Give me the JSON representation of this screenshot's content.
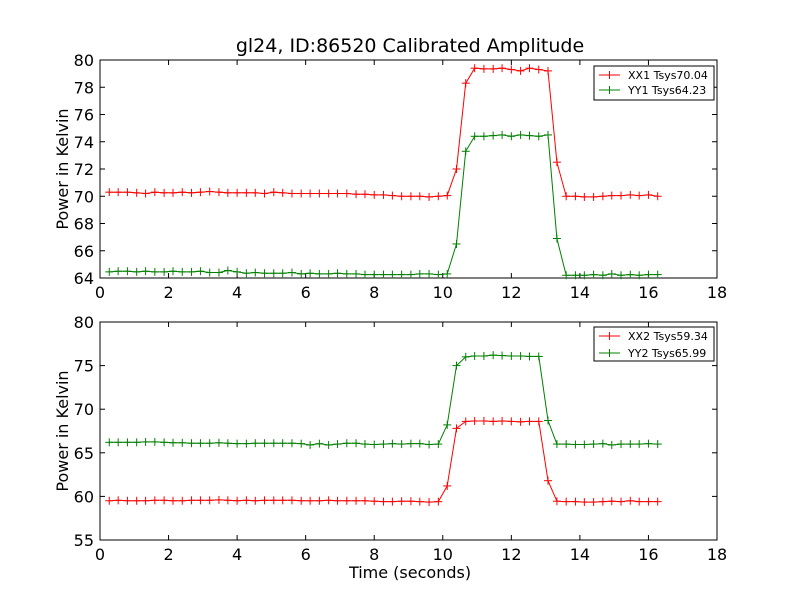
{
  "chart_data": [
    {
      "type": "line",
      "title": "gl24, ID:86520 Calibrated Amplitude",
      "xlabel": "",
      "ylabel": "Power in Kelvin",
      "xlim": [
        0,
        18
      ],
      "ylim": [
        64,
        80
      ],
      "xticks": [
        "0",
        "2",
        "4",
        "6",
        "8",
        "10",
        "12",
        "14",
        "16",
        "18"
      ],
      "yticks": [
        "64",
        "66",
        "68",
        "70",
        "72",
        "74",
        "76",
        "78",
        "80"
      ],
      "legend_position": "top-right",
      "grid": false,
      "x": [
        0.27,
        0.53,
        0.8,
        1.07,
        1.33,
        1.6,
        1.87,
        2.13,
        2.4,
        2.67,
        2.93,
        3.2,
        3.47,
        3.73,
        4.0,
        4.27,
        4.53,
        4.8,
        5.07,
        5.33,
        5.6,
        5.87,
        6.13,
        6.4,
        6.67,
        6.93,
        7.2,
        7.47,
        7.73,
        8.0,
        8.27,
        8.53,
        8.8,
        9.07,
        9.33,
        9.6,
        9.87,
        10.13,
        10.4,
        10.67,
        10.93,
        11.2,
        11.47,
        11.73,
        12.0,
        12.27,
        12.53,
        12.8,
        13.07,
        13.33,
        13.6,
        13.87,
        14.13,
        14.4,
        14.67,
        14.93,
        15.2,
        15.47,
        15.73,
        16.0,
        16.27
      ],
      "series": [
        {
          "name": "XX1 Tsys70.04",
          "color": "#ff0000",
          "values": [
            70.3,
            70.3,
            70.3,
            70.25,
            70.2,
            70.3,
            70.25,
            70.25,
            70.3,
            70.25,
            70.3,
            70.35,
            70.3,
            70.25,
            70.25,
            70.25,
            70.25,
            70.2,
            70.3,
            70.25,
            70.2,
            70.2,
            70.2,
            70.2,
            70.2,
            70.2,
            70.2,
            70.15,
            70.15,
            70.1,
            70.1,
            70.05,
            70.0,
            70.0,
            70.0,
            69.95,
            70.0,
            70.05,
            72.0,
            78.3,
            79.4,
            79.35,
            79.35,
            79.4,
            79.3,
            79.2,
            79.4,
            79.3,
            79.2,
            72.5,
            70.0,
            70.0,
            69.95,
            69.95,
            70.0,
            70.05,
            70.05,
            70.1,
            70.05,
            70.1,
            70.0
          ]
        },
        {
          "name": "YY1 Tsys64.23",
          "color": "#008000",
          "values": [
            64.45,
            64.5,
            64.5,
            64.45,
            64.5,
            64.45,
            64.45,
            64.5,
            64.45,
            64.45,
            64.5,
            64.4,
            64.4,
            64.55,
            64.45,
            64.35,
            64.4,
            64.35,
            64.35,
            64.35,
            64.4,
            64.3,
            64.35,
            64.3,
            64.3,
            64.35,
            64.3,
            64.3,
            64.25,
            64.25,
            64.25,
            64.25,
            64.25,
            64.25,
            64.3,
            64.3,
            64.25,
            64.3,
            66.5,
            73.3,
            74.4,
            74.4,
            74.45,
            74.5,
            74.4,
            74.5,
            74.45,
            74.4,
            74.5,
            66.9,
            64.2,
            64.2,
            64.2,
            64.25,
            64.2,
            64.3,
            64.2,
            64.25,
            64.2,
            64.25,
            64.25
          ]
        }
      ]
    },
    {
      "type": "line",
      "title": "",
      "xlabel": "Time (seconds)",
      "ylabel": "Power in Kelvin",
      "xlim": [
        0,
        18
      ],
      "ylim": [
        55,
        80
      ],
      "xticks": [
        "0",
        "2",
        "4",
        "6",
        "8",
        "10",
        "12",
        "14",
        "16",
        "18"
      ],
      "yticks": [
        "55",
        "60",
        "65",
        "70",
        "75",
        "80"
      ],
      "legend_position": "top-right",
      "grid": false,
      "x": [
        0.27,
        0.53,
        0.8,
        1.07,
        1.33,
        1.6,
        1.87,
        2.13,
        2.4,
        2.67,
        2.93,
        3.2,
        3.47,
        3.73,
        4.0,
        4.27,
        4.53,
        4.8,
        5.07,
        5.33,
        5.6,
        5.87,
        6.13,
        6.4,
        6.67,
        6.93,
        7.2,
        7.47,
        7.73,
        8.0,
        8.27,
        8.53,
        8.8,
        9.07,
        9.33,
        9.6,
        9.87,
        10.13,
        10.4,
        10.67,
        10.93,
        11.2,
        11.47,
        11.73,
        12.0,
        12.27,
        12.53,
        12.8,
        13.07,
        13.33,
        13.6,
        13.87,
        14.13,
        14.4,
        14.67,
        14.93,
        15.2,
        15.47,
        15.73,
        16.0,
        16.27
      ],
      "series": [
        {
          "name": "XX2 Tsys59.34",
          "color": "#ff0000",
          "values": [
            59.5,
            59.55,
            59.5,
            59.5,
            59.5,
            59.55,
            59.55,
            59.5,
            59.5,
            59.55,
            59.55,
            59.55,
            59.6,
            59.55,
            59.5,
            59.55,
            59.5,
            59.55,
            59.55,
            59.55,
            59.55,
            59.5,
            59.5,
            59.5,
            59.55,
            59.5,
            59.5,
            59.5,
            59.5,
            59.45,
            59.4,
            59.4,
            59.45,
            59.45,
            59.4,
            59.35,
            59.4,
            61.2,
            67.8,
            68.6,
            68.65,
            68.65,
            68.6,
            68.65,
            68.6,
            68.55,
            68.6,
            68.6,
            61.8,
            59.45,
            59.4,
            59.4,
            59.35,
            59.35,
            59.4,
            59.45,
            59.4,
            59.5,
            59.4,
            59.4,
            59.4
          ]
        },
        {
          "name": "YY2 Tsys65.99",
          "color": "#008000",
          "values": [
            66.2,
            66.2,
            66.2,
            66.2,
            66.25,
            66.25,
            66.2,
            66.15,
            66.15,
            66.1,
            66.1,
            66.1,
            66.15,
            66.1,
            66.05,
            66.05,
            66.1,
            66.1,
            66.1,
            66.1,
            66.1,
            66.05,
            65.9,
            66.05,
            65.9,
            66.0,
            66.1,
            66.1,
            66.0,
            65.95,
            66.0,
            66.05,
            66.0,
            66.05,
            66.05,
            65.95,
            66.0,
            68.2,
            75.0,
            76.0,
            76.1,
            76.1,
            76.2,
            76.15,
            76.1,
            76.1,
            76.05,
            76.05,
            68.7,
            66.0,
            66.0,
            65.95,
            65.95,
            66.0,
            66.05,
            65.9,
            66.0,
            66.0,
            66.0,
            66.05,
            66.0
          ]
        }
      ]
    }
  ]
}
